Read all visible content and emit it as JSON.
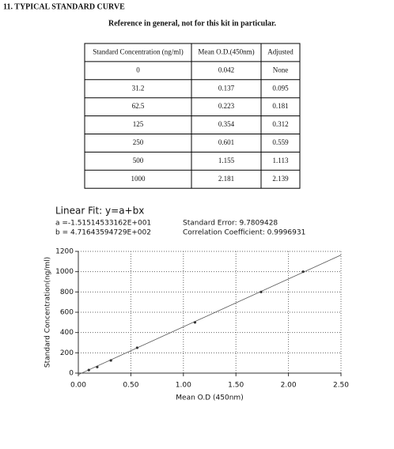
{
  "header": {
    "title": "11. TYPICAL STANDARD CURVE",
    "subtitle": "Reference in general, not for this kit in particular."
  },
  "table": {
    "columns": [
      "Standard Concentration (ng/ml)",
      "Mean O.D.(450nm)",
      "Adjusted"
    ],
    "rows": [
      [
        "0",
        "0.042",
        "None"
      ],
      [
        "31.2",
        "0.137",
        "0.095"
      ],
      [
        "62.5",
        "0.223",
        "0.181"
      ],
      [
        "125",
        "0.354",
        "0.312"
      ],
      [
        "250",
        "0.601",
        "0.559"
      ],
      [
        "500",
        "1.155",
        "1.113"
      ],
      [
        "1000",
        "2.181",
        "2.139"
      ]
    ]
  },
  "chart_data": {
    "type": "scatter",
    "title": "Linear Fit: y=a+bx",
    "fit": {
      "a": {
        "value": -15.1514533162,
        "label": "a =-1.51514533162E+001"
      },
      "b": {
        "value": 471.643594729,
        "label": "b = 4.71643594729E+002"
      }
    },
    "annotations": [
      "Standard Error: 9.7809428",
      "Correlation Coefficient: 0.9996931"
    ],
    "x_label": "Mean O.D (450nm)",
    "y_label": "Standard Concentration(ng/ml)",
    "x": [
      0.1,
      0.18,
      0.31,
      0.56,
      1.11,
      1.74,
      2.14
    ],
    "values": [
      30,
      60,
      125,
      250,
      500,
      800,
      1000
    ],
    "color": "#333333",
    "line_color": "#555555",
    "xlim": [
      0,
      2.5
    ],
    "xticks": [
      {
        "value": 0,
        "label": "0.00"
      },
      {
        "value": 0.5,
        "label": "0.50"
      },
      {
        "value": 1,
        "label": "1.00"
      },
      {
        "value": 1.5,
        "label": "1.50"
      },
      {
        "value": 2,
        "label": "2.00"
      },
      {
        "value": 2.5,
        "label": "2.50"
      }
    ],
    "ylim": [
      0,
      1200
    ],
    "yticks": [
      0,
      200,
      400,
      600,
      800,
      1000,
      1200
    ],
    "grid": true
  }
}
